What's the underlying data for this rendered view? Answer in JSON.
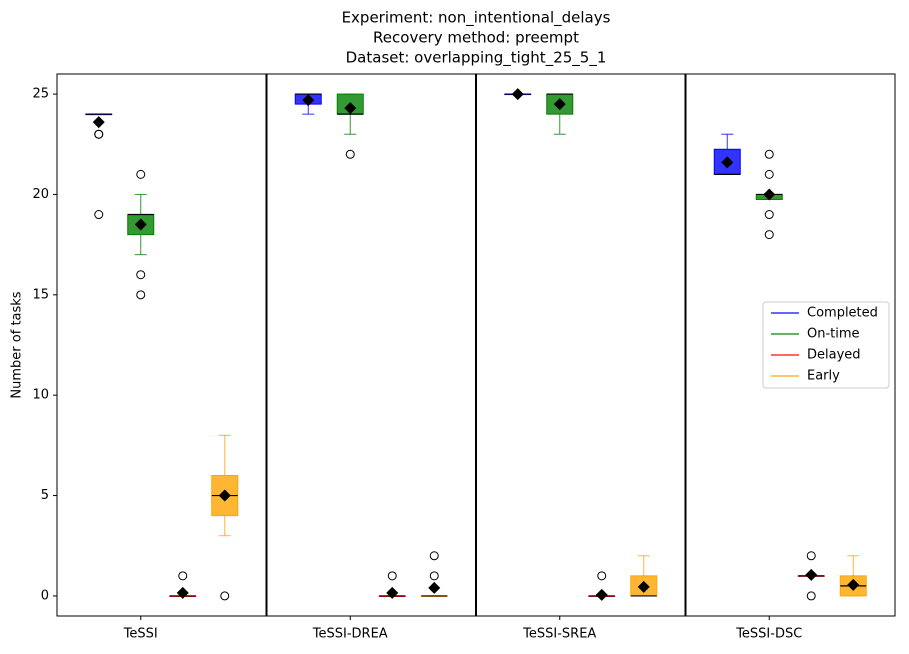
{
  "chart_data": {
    "type": "box",
    "title": [
      "Experiment: non_intentional_delays",
      "Recovery method: preempt",
      "Dataset: overlapping_tight_25_5_1"
    ],
    "y_label": "Number of tasks",
    "categories": [
      "TeSSI",
      "TeSSI-DREA",
      "TeSSI-SREA",
      "TeSSI-DSC"
    ],
    "ylim": [
      -1,
      26
    ],
    "yticks": [
      0,
      5,
      10,
      15,
      20,
      25
    ],
    "legend_position": "center right",
    "series": [
      {
        "name": "Completed",
        "color": "#0000ff",
        "boxes": [
          {
            "whislo": 24,
            "q1": 24,
            "med": 24,
            "q3": 24,
            "whishi": 24,
            "mean": 23.6,
            "fliers": [
              23,
              23,
              19
            ]
          },
          {
            "whislo": 24,
            "q1": 24.5,
            "med": 25,
            "q3": 25,
            "whishi": 25,
            "mean": 24.7,
            "fliers": []
          },
          {
            "whislo": 25,
            "q1": 25,
            "med": 25,
            "q3": 25,
            "whishi": 25,
            "mean": 25,
            "fliers": []
          },
          {
            "whislo": 21,
            "q1": 21,
            "med": 21,
            "q3": 22.25,
            "whishi": 23,
            "mean": 21.6,
            "fliers": []
          }
        ]
      },
      {
        "name": "On-time",
        "color": "#008000",
        "boxes": [
          {
            "whislo": 17,
            "q1": 18,
            "med": 19,
            "q3": 19,
            "whishi": 20,
            "mean": 18.5,
            "fliers": [
              21,
              16,
              15
            ]
          },
          {
            "whislo": 23,
            "q1": 24,
            "med": 24,
            "q3": 25,
            "whishi": 25,
            "mean": 24.3,
            "fliers": [
              22
            ]
          },
          {
            "whislo": 23,
            "q1": 24,
            "med": 25,
            "q3": 25,
            "whishi": 25,
            "mean": 24.5,
            "fliers": []
          },
          {
            "whislo": 19.75,
            "q1": 19.75,
            "med": 20,
            "q3": 20,
            "whishi": 20,
            "mean": 20,
            "fliers": [
              22,
              21,
              19,
              18
            ]
          }
        ]
      },
      {
        "name": "Delayed",
        "color": "#ff0000",
        "boxes": [
          {
            "whislo": 0,
            "q1": 0,
            "med": 0,
            "q3": 0,
            "whishi": 0,
            "mean": 0.15,
            "fliers": [
              1
            ]
          },
          {
            "whislo": 0,
            "q1": 0,
            "med": 0,
            "q3": 0,
            "whishi": 0,
            "mean": 0.15,
            "fliers": [
              1
            ]
          },
          {
            "whislo": 0,
            "q1": 0,
            "med": 0,
            "q3": 0,
            "whishi": 0,
            "mean": 0.05,
            "fliers": [
              1
            ]
          },
          {
            "whislo": 1,
            "q1": 1,
            "med": 1,
            "q3": 1,
            "whishi": 1,
            "mean": 1.05,
            "fliers": [
              2,
              0
            ]
          }
        ]
      },
      {
        "name": "Early",
        "color": "#ffa500",
        "boxes": [
          {
            "whislo": 3,
            "q1": 4,
            "med": 5,
            "q3": 6,
            "whishi": 8,
            "mean": 5,
            "fliers": [
              0
            ]
          },
          {
            "whislo": 0,
            "q1": 0,
            "med": 0,
            "q3": 0,
            "whishi": 0,
            "mean": 0.4,
            "fliers": [
              1,
              2
            ]
          },
          {
            "whislo": 0,
            "q1": 0,
            "med": 0,
            "q3": 1,
            "whishi": 2,
            "mean": 0.45,
            "fliers": []
          },
          {
            "whislo": 0,
            "q1": 0,
            "med": 0.5,
            "q3": 1,
            "whishi": 2,
            "mean": 0.55,
            "fliers": []
          }
        ]
      }
    ]
  }
}
